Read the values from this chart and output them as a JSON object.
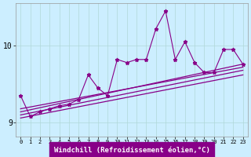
{
  "xlabel": "Windchill (Refroidissement éolien,°C)",
  "bg_color": "#cceeff",
  "line_color": "#880088",
  "grid_color": "#b0d8d8",
  "xlim": [
    -0.5,
    23.5
  ],
  "ylim": [
    8.82,
    10.55
  ],
  "yticks": [
    9,
    10
  ],
  "xticks": [
    0,
    1,
    2,
    3,
    4,
    5,
    6,
    7,
    8,
    9,
    10,
    11,
    12,
    13,
    14,
    15,
    16,
    17,
    18,
    19,
    20,
    21,
    22,
    23
  ],
  "main_x": [
    0,
    1,
    2,
    3,
    4,
    5,
    6,
    7,
    8,
    9,
    10,
    11,
    12,
    13,
    14,
    15,
    16,
    17,
    18,
    19,
    20,
    21,
    22,
    23
  ],
  "main_y": [
    9.35,
    9.08,
    9.14,
    9.18,
    9.22,
    9.24,
    9.3,
    9.62,
    9.45,
    9.35,
    9.82,
    9.78,
    9.82,
    9.82,
    10.22,
    10.45,
    9.82,
    10.05,
    9.78,
    9.65,
    9.65,
    9.95,
    9.95,
    9.76
  ],
  "trend1_start": 9.18,
  "trend1_end": 9.72,
  "trend2_start": 9.14,
  "trend2_end": 9.76,
  "trend3_start": 9.1,
  "trend3_end": 9.68,
  "trend4_start": 9.06,
  "trend4_end": 9.62
}
